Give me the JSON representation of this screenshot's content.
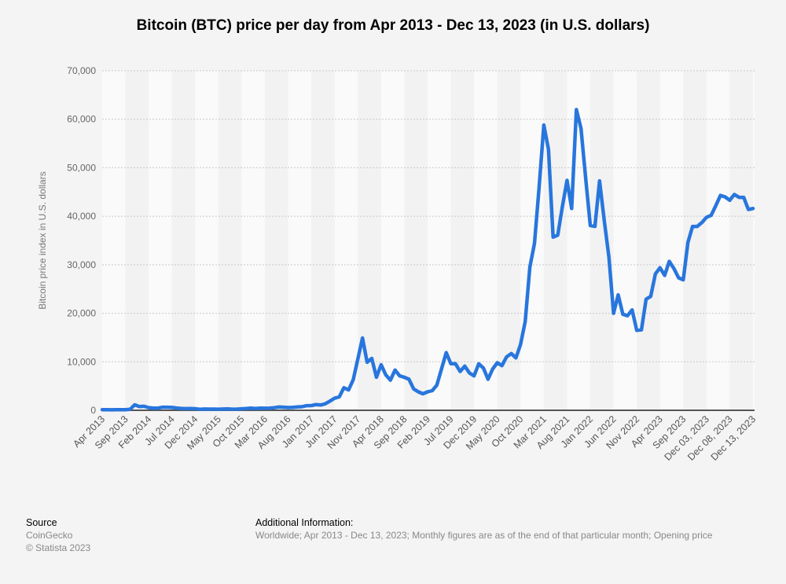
{
  "chart_data": {
    "type": "line",
    "title": "Bitcoin (BTC) price per day from Apr 2013 - Dec 13, 2023 (in U.S. dollars)",
    "xlabel": "",
    "ylabel": "Bitcoin price index in U.S. dollars",
    "ylim": [
      0,
      70000
    ],
    "yticks": [
      0,
      10000,
      20000,
      30000,
      40000,
      50000,
      60000,
      70000
    ],
    "grid": true,
    "line_color": "#2876dd",
    "x_tick_labels": [
      "Apr 2013",
      "Sep 2013",
      "Feb 2014",
      "Jul 2014",
      "Dec 2014",
      "May 2015",
      "Oct 2015",
      "Mar 2016",
      "Aug 2016",
      "Jan 2017",
      "Jun 2017",
      "Nov 2017",
      "Apr 2018",
      "Sep 2018",
      "Feb 2019",
      "Jul 2019",
      "Dec 2019",
      "May 2020",
      "Oct 2020",
      "Mar 2021",
      "Aug 2021",
      "Jan 2022",
      "Jun 2022",
      "Nov 2022",
      "Apr 2023",
      "Sep 2023",
      "Dec 03, 2023",
      "Dec 08, 2023",
      "Dec 13, 2023"
    ],
    "x_tick_every": 5,
    "values": [
      135,
      129,
      97,
      106,
      135,
      133,
      198,
      1130,
      754,
      829,
      550,
      458,
      448,
      628,
      640,
      586,
      478,
      387,
      338,
      378,
      320,
      218,
      254,
      244,
      236,
      230,
      263,
      284,
      230,
      236,
      314,
      378,
      430,
      369,
      437,
      416,
      448,
      531,
      673,
      624,
      575,
      609,
      698,
      742,
      963,
      970,
      1190,
      1080,
      1350,
      1900,
      2500,
      2750,
      4650,
      4200,
      6300,
      10600,
      14900,
      9900,
      10700,
      6800,
      9400,
      7300,
      6200,
      8300,
      7100,
      6800,
      6400,
      4400,
      3800,
      3400,
      3800,
      4050,
      5200,
      8500,
      11900,
      9600,
      9600,
      8000,
      9100,
      7700,
      7100,
      9600,
      8700,
      6400,
      8500,
      9800,
      9200,
      11000,
      11700,
      10800,
      13600,
      18300,
      29500,
      34400,
      46000,
      58800,
      53800,
      35700,
      36100,
      42000,
      47400,
      41600,
      62000,
      58100,
      47900,
      38100,
      37900,
      47300,
      39200,
      31600,
      20000,
      23800,
      19800,
      19500,
      20700,
      16500,
      16600,
      22900,
      23500,
      28100,
      29400,
      27800,
      30700,
      29200,
      27300,
      26900,
      34600,
      37900,
      37900,
      38700,
      39800,
      40200,
      42200,
      44300,
      44000,
      43300,
      44500,
      43900,
      43900,
      41400,
      41600
    ]
  },
  "footer": {
    "source_heading": "Source",
    "source_name": "CoinGecko",
    "copyright": "© Statista 2023",
    "info_heading": "Additional Information:",
    "info_text": "Worldwide; Apr 2013 - Dec 13, 2023; Monthly figures are as of the end of that particular month; Opening price"
  }
}
